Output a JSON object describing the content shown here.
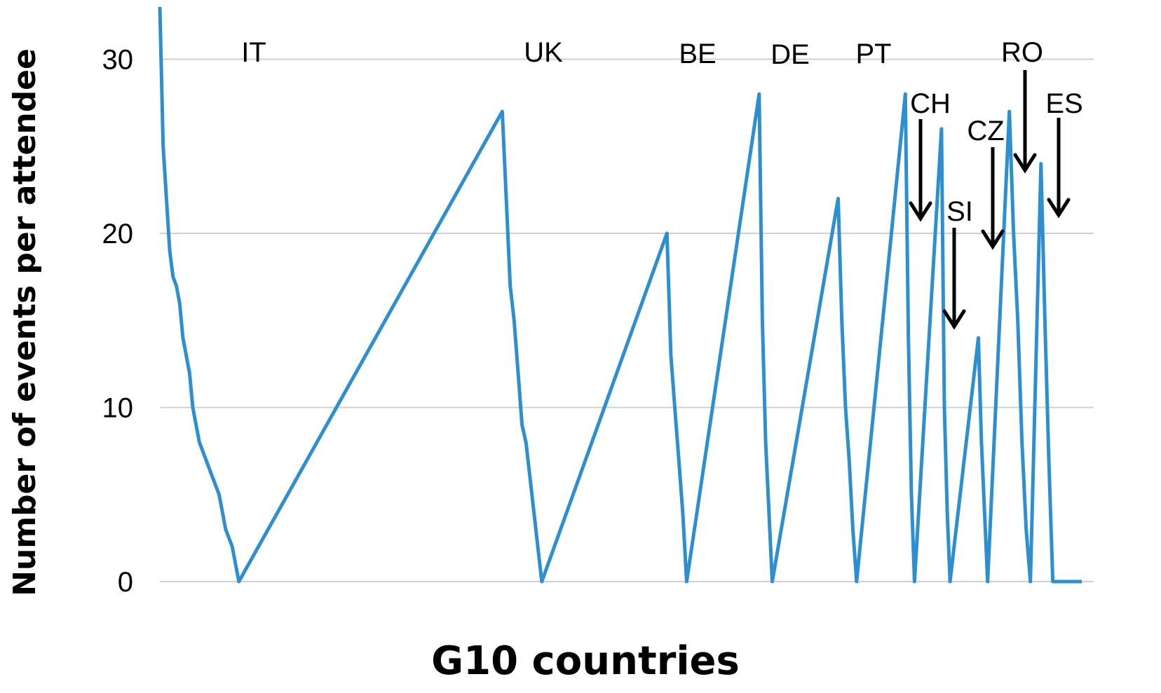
{
  "chart_data": {
    "type": "line",
    "xlabel": "G10 countries",
    "ylabel": "Number of events per attendee",
    "ylim": [
      0,
      33
    ],
    "yticks": [
      0,
      10,
      20,
      30
    ],
    "grid": true,
    "legend": "none",
    "series_color": "#2E8FD0",
    "x_range": [
      0,
      1400
    ],
    "groups": [
      {
        "label": "IT",
        "start": 0,
        "end": 120,
        "arrow": false,
        "values": [
          33,
          25,
          22,
          19,
          17.5,
          17,
          16,
          14,
          13,
          12,
          10,
          9,
          8,
          7.5,
          7,
          6.5,
          6,
          5.5,
          5,
          4,
          3,
          2.5,
          2,
          1,
          0
        ]
      },
      {
        "label": "UK",
        "start": 520,
        "end": 580,
        "arrow": false,
        "values": [
          27,
          22,
          17,
          15,
          12,
          9,
          8,
          6,
          4,
          2,
          0
        ]
      },
      {
        "label": "BE",
        "start": 770,
        "end": 800,
        "arrow": false,
        "values": [
          20,
          13,
          10,
          7,
          4,
          0
        ]
      },
      {
        "label": "DE",
        "start": 910,
        "end": 930,
        "arrow": false,
        "values": [
          28,
          15,
          8,
          4,
          0
        ]
      },
      {
        "label": "PT",
        "start": 1030,
        "end": 1058,
        "arrow": false,
        "values": [
          22,
          15,
          10,
          7,
          3,
          0
        ]
      },
      {
        "label": "CH",
        "start": 1132,
        "end": 1146,
        "arrow": true,
        "values": [
          28,
          14,
          5,
          0
        ]
      },
      {
        "label": "SI",
        "start": 1187,
        "end": 1200,
        "arrow": true,
        "values": [
          26,
          10,
          4,
          0
        ]
      },
      {
        "label": "CZ",
        "start": 1243,
        "end": 1257,
        "arrow": true,
        "values": [
          14,
          8,
          4,
          0
        ]
      },
      {
        "label": "RO",
        "start": 1290,
        "end": 1322,
        "arrow": true,
        "values": [
          27,
          20,
          15,
          8,
          3,
          0
        ]
      },
      {
        "label": "ES",
        "start": 1338,
        "end": 1356,
        "arrow": true,
        "values": [
          24,
          15,
          7,
          0
        ]
      }
    ]
  }
}
